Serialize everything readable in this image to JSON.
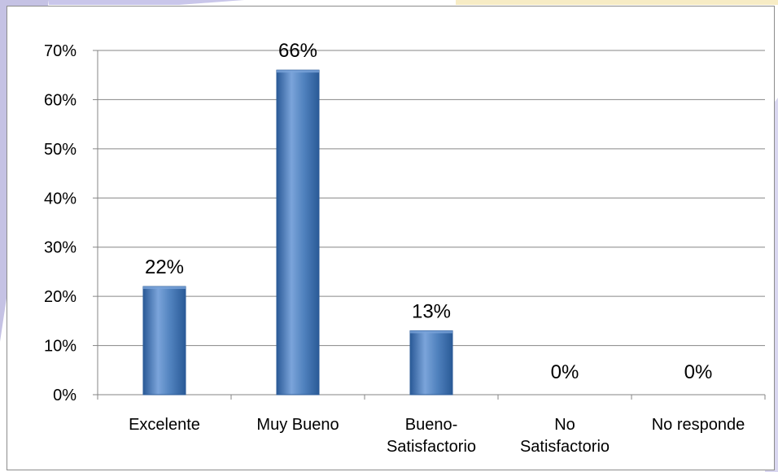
{
  "colors": {
    "bar": "#4f81bd",
    "bar_light": "#7ba4da",
    "bar_dark": "#2a5a97",
    "grid": "#868686",
    "panel_border": "#8c8c8c",
    "decor_left": "#b6b3dd",
    "decor_top": "#f7ecc5"
  },
  "chart_data": {
    "type": "bar",
    "categories": [
      [
        "Excelente"
      ],
      [
        "Muy Bueno"
      ],
      [
        "Bueno-",
        "Satisfactorio"
      ],
      [
        "No",
        "Satisfactorio"
      ],
      [
        "No responde"
      ]
    ],
    "values": [
      22,
      66,
      13,
      0,
      0
    ],
    "data_labels": [
      "22%",
      "66%",
      "13%",
      "0%",
      "0%"
    ],
    "ylim": [
      0,
      70
    ],
    "yticks": [
      0,
      10,
      20,
      30,
      40,
      50,
      60,
      70
    ],
    "ytick_labels": [
      "0%",
      "10%",
      "20%",
      "30%",
      "40%",
      "50%",
      "60%",
      "70%"
    ],
    "grid": true,
    "legend": false
  }
}
